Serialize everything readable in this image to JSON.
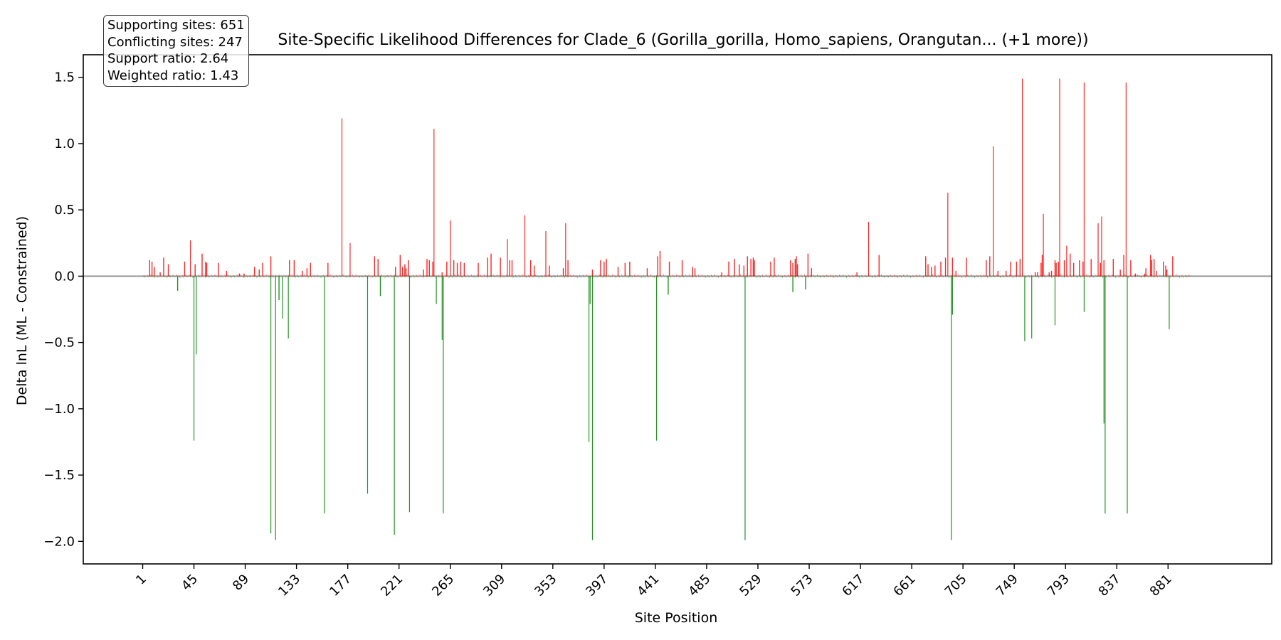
{
  "chart_data": {
    "type": "bar",
    "title": "Site-Specific Likelihood Differences for Clade_6 (Gorilla_gorilla, Homo_sapiens, Orangutan... (+1 more))",
    "xlabel": "Site Position",
    "ylabel": "Delta lnL (ML - Constrained)",
    "xlim": [
      -50,
      970
    ],
    "ylim": [
      -2.17,
      1.67
    ],
    "x_ticks": [
      1,
      45,
      89,
      133,
      177,
      221,
      265,
      309,
      353,
      397,
      441,
      485,
      529,
      573,
      617,
      661,
      705,
      749,
      793,
      837,
      881
    ],
    "y_ticks": [
      -2.0,
      -1.5,
      -1.0,
      -0.5,
      0.0,
      0.5,
      1.0,
      1.5
    ],
    "zero_line": true,
    "colors": {
      "supporting": "#ff0000",
      "conflicting": "#008000",
      "zero_line": "#999999",
      "frame": "#000000"
    },
    "stats": {
      "supporting_label": "Supporting sites: 651",
      "conflicting_label": "Conflicting sites: 247",
      "support_ratio_label": "Support ratio: 2.64",
      "weighted_ratio_label": "Weighted ratio: 1.43"
    },
    "series": [
      {
        "name": "Supporting",
        "points": [
          [
            7,
            0.12
          ],
          [
            9,
            0.11
          ],
          [
            11,
            0.07
          ],
          [
            16,
            0.03
          ],
          [
            19,
            0.14
          ],
          [
            23,
            0.09
          ],
          [
            37,
            0.11
          ],
          [
            42,
            0.27
          ],
          [
            46,
            0.09
          ],
          [
            52,
            0.17
          ],
          [
            55,
            0.11
          ],
          [
            56,
            0.1
          ],
          [
            66,
            0.1
          ],
          [
            73,
            0.04
          ],
          [
            84,
            0.02
          ],
          [
            88,
            0.02
          ],
          [
            97,
            0.07
          ],
          [
            101,
            0.05
          ],
          [
            104,
            0.1
          ],
          [
            111,
            0.15
          ],
          [
            127,
            0.12
          ],
          [
            131,
            0.12
          ],
          [
            138,
            0.04
          ],
          [
            142,
            0.06
          ],
          [
            145,
            0.1
          ],
          [
            160,
            0.1
          ],
          [
            172,
            1.19
          ],
          [
            179,
            0.25
          ],
          [
            200,
            0.15
          ],
          [
            203,
            0.13
          ],
          [
            218,
            0.07
          ],
          [
            222,
            0.16
          ],
          [
            224,
            0.07
          ],
          [
            226,
            0.09
          ],
          [
            227,
            0.06
          ],
          [
            229,
            0.12
          ],
          [
            242,
            0.05
          ],
          [
            245,
            0.13
          ],
          [
            247,
            0.12
          ],
          [
            250,
            0.11
          ],
          [
            251,
            1.11
          ],
          [
            258,
            0.03
          ],
          [
            262,
            0.11
          ],
          [
            265,
            0.42
          ],
          [
            268,
            0.12
          ],
          [
            271,
            0.1
          ],
          [
            274,
            0.11
          ],
          [
            277,
            0.1
          ],
          [
            289,
            0.1
          ],
          [
            297,
            0.14
          ],
          [
            300,
            0.17
          ],
          [
            308,
            0.14
          ],
          [
            314,
            0.28
          ],
          [
            316,
            0.12
          ],
          [
            318,
            0.12
          ],
          [
            329,
            0.46
          ],
          [
            334,
            0.12
          ],
          [
            337,
            0.08
          ],
          [
            347,
            0.34
          ],
          [
            350,
            0.08
          ],
          [
            362,
            0.06
          ],
          [
            364,
            0.4
          ],
          [
            366,
            0.12
          ],
          [
            387,
            0.05
          ],
          [
            394,
            0.12
          ],
          [
            397,
            0.11
          ],
          [
            399,
            0.13
          ],
          [
            409,
            0.07
          ],
          [
            415,
            0.1
          ],
          [
            419,
            0.11
          ],
          [
            434,
            0.06
          ],
          [
            443,
            0.15
          ],
          [
            445,
            0.19
          ],
          [
            453,
            0.11
          ],
          [
            464,
            0.12
          ],
          [
            473,
            0.07
          ],
          [
            475,
            0.06
          ],
          [
            498,
            0.03
          ],
          [
            504,
            0.11
          ],
          [
            509,
            0.13
          ],
          [
            513,
            0.09
          ],
          [
            517,
            0.08
          ],
          [
            520,
            0.15
          ],
          [
            523,
            0.13
          ],
          [
            525,
            0.14
          ],
          [
            526,
            0.12
          ],
          [
            540,
            0.11
          ],
          [
            543,
            0.14
          ],
          [
            557,
            0.12
          ],
          [
            559,
            0.1
          ],
          [
            561,
            0.13
          ],
          [
            562,
            0.15
          ],
          [
            563,
            0.09
          ],
          [
            572,
            0.17
          ],
          [
            575,
            0.06
          ],
          [
            614,
            0.03
          ],
          [
            624,
            0.41
          ],
          [
            633,
            0.16
          ],
          [
            673,
            0.15
          ],
          [
            675,
            0.09
          ],
          [
            678,
            0.07
          ],
          [
            681,
            0.08
          ],
          [
            686,
            0.11
          ],
          [
            690,
            0.14
          ],
          [
            692,
            0.63
          ],
          [
            696,
            0.14
          ],
          [
            699,
            0.04
          ],
          [
            708,
            0.14
          ],
          [
            725,
            0.12
          ],
          [
            728,
            0.15
          ],
          [
            731,
            0.98
          ],
          [
            735,
            0.04
          ],
          [
            742,
            0.04
          ],
          [
            746,
            0.11
          ],
          [
            751,
            0.11
          ],
          [
            754,
            0.13
          ],
          [
            756,
            1.49
          ],
          [
            767,
            0.03
          ],
          [
            769,
            0.03
          ],
          [
            772,
            0.1
          ],
          [
            773,
            0.16
          ],
          [
            774,
            0.47
          ],
          [
            779,
            0.03
          ],
          [
            781,
            0.04
          ],
          [
            784,
            0.12
          ],
          [
            785,
            0.1
          ],
          [
            787,
            0.11
          ],
          [
            788,
            1.49
          ],
          [
            792,
            0.12
          ],
          [
            794,
            0.23
          ],
          [
            797,
            0.17
          ],
          [
            800,
            0.1
          ],
          [
            805,
            0.12
          ],
          [
            808,
            0.11
          ],
          [
            809,
            1.46
          ],
          [
            815,
            0.13
          ],
          [
            821,
            0.4
          ],
          [
            823,
            0.1
          ],
          [
            824,
            0.45
          ],
          [
            826,
            0.12
          ],
          [
            834,
            0.13
          ],
          [
            840,
            0.05
          ],
          [
            843,
            0.16
          ],
          [
            845,
            1.46
          ],
          [
            849,
            0.12
          ],
          [
            853,
            0.02
          ],
          [
            861,
            0.02
          ],
          [
            862,
            0.06
          ],
          [
            866,
            0.16
          ],
          [
            867,
            0.12
          ],
          [
            869,
            0.13
          ],
          [
            871,
            0.04
          ],
          [
            877,
            0.11
          ],
          [
            879,
            0.08
          ],
          [
            880,
            0.05
          ],
          [
            885,
            0.15
          ]
        ]
      },
      {
        "name": "Conflicting",
        "points": [
          [
            31,
            -0.11
          ],
          [
            45,
            -1.24
          ],
          [
            47,
            -0.59
          ],
          [
            111,
            -1.94
          ],
          [
            115,
            -1.99
          ],
          [
            118,
            -0.18
          ],
          [
            121,
            -0.32
          ],
          [
            126,
            -0.47
          ],
          [
            157,
            -1.79
          ],
          [
            194,
            -1.64
          ],
          [
            205,
            -0.15
          ],
          [
            217,
            -1.95
          ],
          [
            230,
            -1.78
          ],
          [
            253,
            -0.21
          ],
          [
            258,
            -0.48
          ],
          [
            259,
            -1.79
          ],
          [
            384,
            -1.25
          ],
          [
            385,
            -0.21
          ],
          [
            387,
            -1.99
          ],
          [
            442,
            -1.24
          ],
          [
            452,
            -0.14
          ],
          [
            518,
            -1.99
          ],
          [
            559,
            -0.12
          ],
          [
            570,
            -0.1
          ],
          [
            695,
            -1.99
          ],
          [
            696,
            -0.29
          ],
          [
            758,
            -0.49
          ],
          [
            764,
            -0.47
          ],
          [
            784,
            -0.37
          ],
          [
            809,
            -0.27
          ],
          [
            826,
            -1.11
          ],
          [
            827,
            -1.79
          ],
          [
            846,
            -1.79
          ],
          [
            882,
            -0.4
          ]
        ]
      }
    ]
  }
}
